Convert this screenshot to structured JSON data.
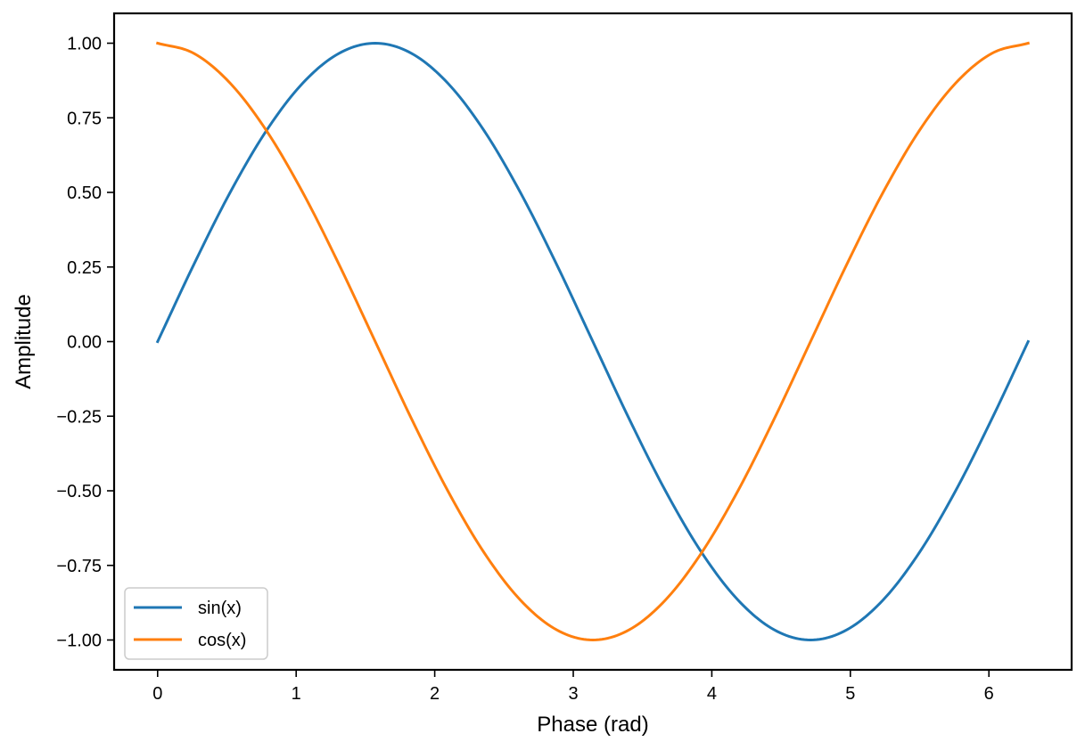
{
  "chart_data": {
    "type": "line",
    "title": "",
    "xlabel": "Phase (rad)",
    "ylabel": "Amplitude",
    "xlim": [
      -0.314,
      6.597
    ],
    "ylim": [
      -1.1,
      1.1
    ],
    "grid": false,
    "legend_position": "bottom-left",
    "x_ticks": [
      0,
      1,
      2,
      3,
      4,
      5,
      6
    ],
    "x_tick_labels": [
      "0",
      "1",
      "2",
      "3",
      "4",
      "5",
      "6"
    ],
    "y_ticks": [
      -1.0,
      -0.75,
      -0.5,
      -0.25,
      0.0,
      0.25,
      0.5,
      0.75,
      1.0
    ],
    "y_tick_labels": [
      "−1.00",
      "−0.75",
      "−0.50",
      "−0.25",
      "0.00",
      "0.25",
      "0.50",
      "0.75",
      "1.00"
    ],
    "x": [
      0,
      0.2618,
      0.5236,
      0.7854,
      1.0472,
      1.309,
      1.5708,
      1.8326,
      2.0944,
      2.3562,
      2.618,
      2.8798,
      3.1416,
      3.4034,
      3.6652,
      3.927,
      4.1888,
      4.4506,
      4.7124,
      4.9742,
      5.236,
      5.4978,
      5.7596,
      6.0214,
      6.2832
    ],
    "series": [
      {
        "name": "sin(x)",
        "color": "#1f77b4",
        "values": [
          0,
          0.2588,
          0.5,
          0.7071,
          0.866,
          0.9659,
          1,
          0.9659,
          0.866,
          0.7071,
          0.5,
          0.2588,
          0,
          -0.2588,
          -0.5,
          -0.7071,
          -0.866,
          -0.9659,
          -1,
          -0.9659,
          -0.866,
          -0.7071,
          -0.5,
          -0.2588,
          0
        ]
      },
      {
        "name": "cos(x)",
        "color": "#ff7f0e",
        "values": [
          1,
          0.9659,
          0.866,
          0.7071,
          0.5,
          0.2588,
          0,
          -0.2588,
          -0.5,
          -0.7071,
          -0.866,
          -0.9659,
          -1,
          -0.9659,
          -0.866,
          -0.7071,
          -0.5,
          -0.2588,
          0,
          0.2588,
          0.5,
          0.7071,
          0.866,
          0.9659,
          1
        ]
      }
    ]
  }
}
